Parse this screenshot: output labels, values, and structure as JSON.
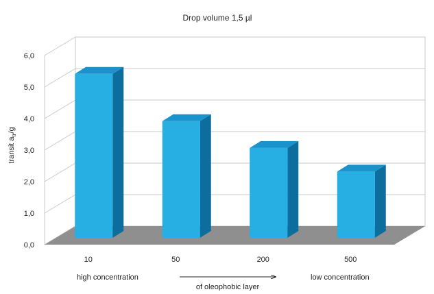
{
  "chart_data": {
    "type": "bar",
    "title": "Drop volume 1,5 µl",
    "ylabel_parts": [
      "transit a",
      "tr",
      "/g"
    ],
    "ylim": [
      0,
      6
    ],
    "yticks": [
      "0,0",
      "1,0",
      "2,0",
      "3,0",
      "4,0",
      "5,0",
      "6,0"
    ],
    "categories": [
      "10",
      "50",
      "200",
      "500"
    ],
    "values": [
      5.2,
      3.7,
      2.85,
      2.1
    ],
    "grid": true,
    "annotations": {
      "left": "high concentration",
      "middle": "of oleophobic layer",
      "right": "low concentration"
    }
  },
  "colors": {
    "bar_front": "#27aee3",
    "bar_top": "#1a93cc",
    "bar_side": "#0d6d9c",
    "floor": "#8f8f8f",
    "grid": "#c9c9c9",
    "wall": "#ffffff"
  }
}
